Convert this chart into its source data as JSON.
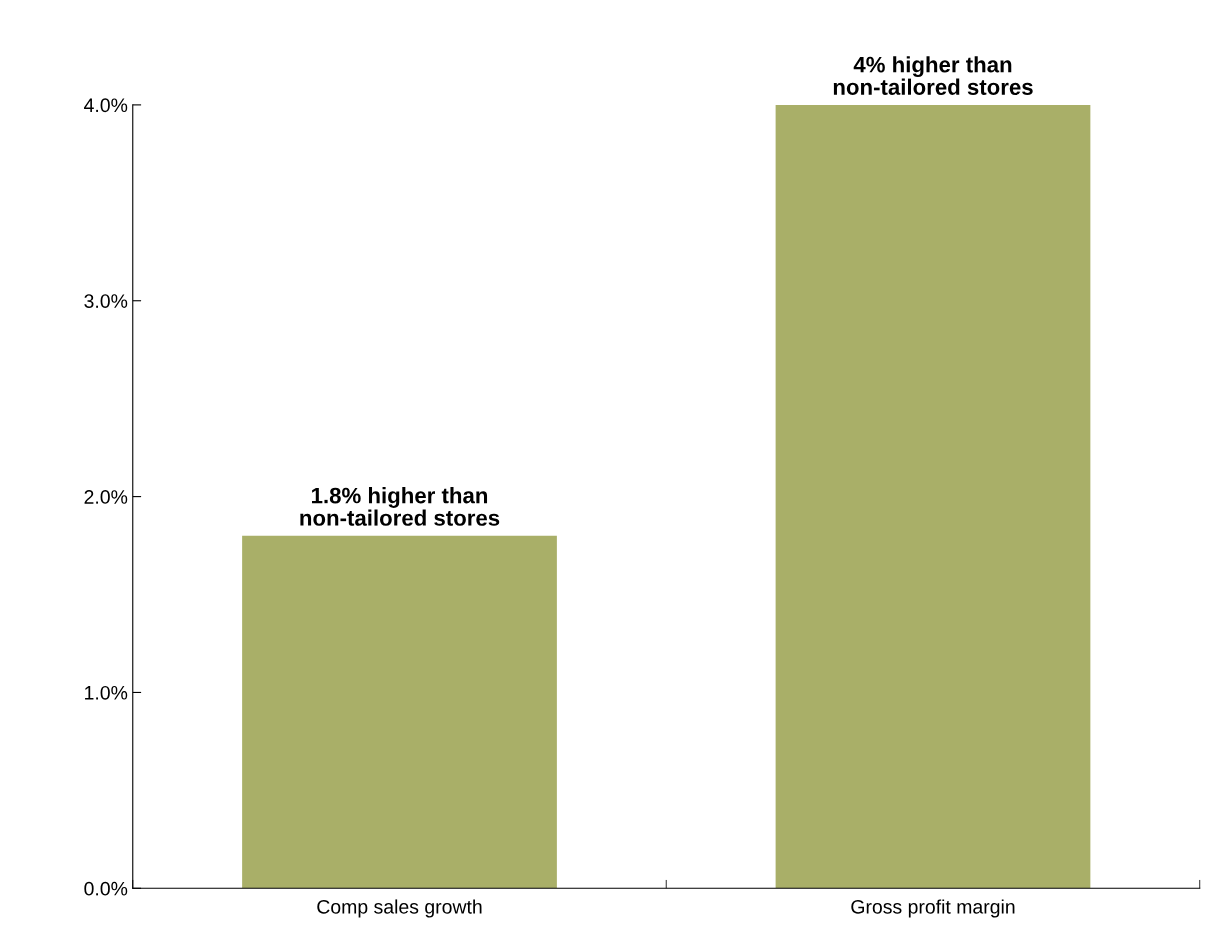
{
  "chart_data": {
    "type": "bar",
    "categories": [
      "Comp sales growth",
      "Gross profit margin"
    ],
    "values": [
      1.8,
      4.0
    ],
    "color": "#a9af68",
    "value_labels": [
      "1.8% higher than\nnon-tailored stores",
      "4% higher than\nnon-tailored stores"
    ],
    "ylim": [
      0,
      4.0
    ],
    "yticks": [
      {
        "value": 0,
        "label": "0.0%"
      },
      {
        "value": 1,
        "label": "1.0%"
      },
      {
        "value": 2,
        "label": "2.0%"
      },
      {
        "value": 3,
        "label": "3.0%"
      },
      {
        "value": 4,
        "label": "4.0%"
      }
    ],
    "grid": false,
    "legend": false
  }
}
